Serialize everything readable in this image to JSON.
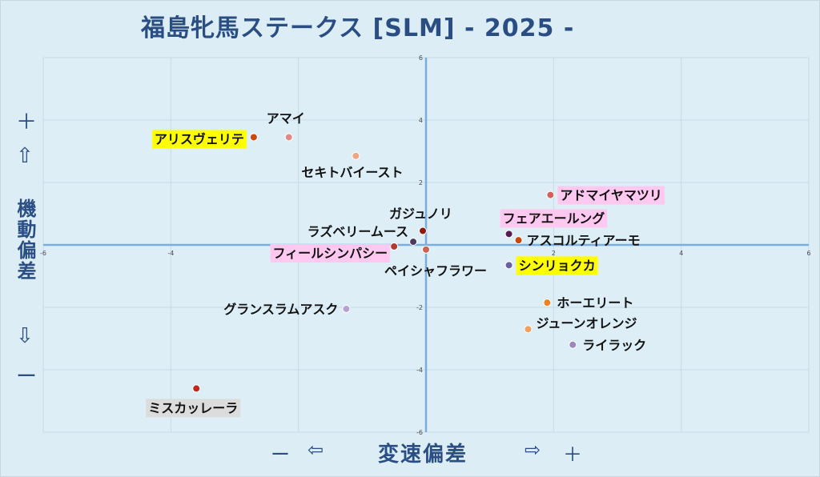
{
  "title": "福島牝馬ステークス [SLM]  - 2025 -",
  "y_axis": {
    "label": "機動偏差",
    "plus": "＋",
    "up_arrow": "⇧",
    "down_arrow": "⇩",
    "minus": "ー"
  },
  "x_axis": {
    "label": "変速偏差",
    "minus": "ー",
    "left_arrow": "⇦",
    "right_arrow": "⇨",
    "plus": "＋"
  },
  "chart_data": {
    "type": "scatter",
    "title": "福島牝馬ステークス [SLM]  - 2025 -",
    "xlabel": "変速偏差",
    "ylabel": "機動偏差",
    "xlim": [
      -6,
      6
    ],
    "ylim": [
      -6,
      6
    ],
    "x_ticks": [
      -6,
      -4,
      -2,
      2,
      4,
      6
    ],
    "y_ticks": [
      6,
      4,
      2,
      -2,
      -4,
      -6
    ],
    "grid": true,
    "points": [
      {
        "name": "アマイ",
        "x": -2.15,
        "y": 3.45,
        "color": "#e08a84",
        "highlight": ""
      },
      {
        "name": "アリスヴェリテ",
        "x": -2.7,
        "y": 3.45,
        "color": "#c8480a",
        "highlight": "#ffff00"
      },
      {
        "name": "セキトバイースト",
        "x": -1.1,
        "y": 2.85,
        "color": "#f0a487",
        "highlight": ""
      },
      {
        "name": "アドマイヤマツリ",
        "x": 1.95,
        "y": 1.6,
        "color": "#d4605a",
        "highlight": "#ffc8f0"
      },
      {
        "name": "ガジュノリ",
        "x": -0.05,
        "y": 0.45,
        "color": "#8b1a10",
        "highlight": ""
      },
      {
        "name": "フェアエールング",
        "x": 1.3,
        "y": 0.35,
        "color": "#5a1a50",
        "highlight": "#ffc8f0"
      },
      {
        "name": "アスコルティアーモ",
        "x": 1.45,
        "y": 0.15,
        "color": "#c8460a",
        "highlight": ""
      },
      {
        "name": "ラズベリームース",
        "x": -0.2,
        "y": 0.1,
        "color": "#4e3a60",
        "highlight": ""
      },
      {
        "name": "フィールシンパシー",
        "x": -0.5,
        "y": -0.05,
        "color": "#b03a30",
        "highlight": "#ffc8f0"
      },
      {
        "name": "ペイシャフラワー",
        "x": 0.0,
        "y": -0.15,
        "color": "#d06050",
        "highlight": ""
      },
      {
        "name": "シンリョクカ",
        "x": 1.3,
        "y": -0.65,
        "color": "#6a60a0",
        "highlight": "#ffff00"
      },
      {
        "name": "ホーエリート",
        "x": 1.9,
        "y": -1.85,
        "color": "#f08020",
        "highlight": ""
      },
      {
        "name": "グランスラムアスク",
        "x": -1.25,
        "y": -2.05,
        "color": "#b8a0d0",
        "highlight": ""
      },
      {
        "name": "ジューンオレンジ",
        "x": 1.6,
        "y": -2.7,
        "color": "#f0a060",
        "highlight": ""
      },
      {
        "name": "ライラック",
        "x": 2.3,
        "y": -3.2,
        "color": "#9a88c0",
        "highlight": ""
      },
      {
        "name": "ミスカッレーラ",
        "x": -3.6,
        "y": -4.6,
        "color": "#c02820",
        "highlight": "#dcdcdc"
      }
    ]
  }
}
